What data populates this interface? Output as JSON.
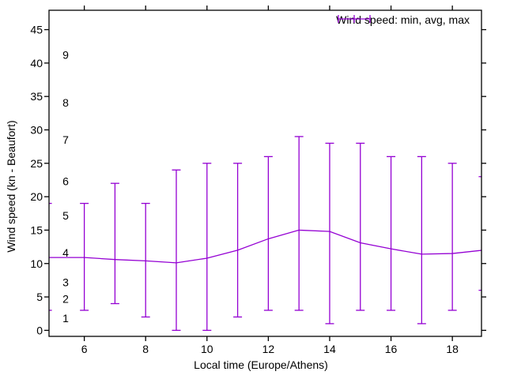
{
  "chart_data": {
    "type": "line",
    "subtype": "errorbars",
    "title": "",
    "xlabel": "Local time (Europe/Athens)",
    "ylabel": "Wind speed (kn - Beaufort)",
    "legend": {
      "label": "Wind speed: min, avg, max",
      "position": "top-right-inside"
    },
    "grid": false,
    "xlim": [
      4.85,
      18.95
    ],
    "ylim": [
      -0.9,
      47.9
    ],
    "x_ticks": [
      6,
      8,
      10,
      12,
      14,
      16,
      18
    ],
    "y_ticks": [
      0,
      5,
      10,
      15,
      20,
      25,
      30,
      35,
      40,
      45
    ],
    "beaufort_scale": {
      "values": [
        1,
        2,
        3,
        4,
        5,
        6,
        7,
        8,
        9
      ],
      "kn_positions": [
        1.8,
        4.7,
        7.2,
        11.6,
        17.2,
        22.3,
        28.5,
        34.1,
        41.2
      ]
    },
    "x": [
      4.8,
      6,
      7,
      8,
      9,
      10,
      11,
      12,
      13,
      14,
      15,
      16,
      17,
      18,
      19
    ],
    "series": [
      {
        "name": "min",
        "values": [
          3,
          3,
          4,
          2,
          0,
          0,
          2,
          3,
          3,
          1,
          3,
          3,
          1,
          3,
          6
        ]
      },
      {
        "name": "avg",
        "values": [
          10.9,
          10.9,
          10.6,
          10.4,
          10.1,
          10.8,
          12.0,
          13.7,
          15.0,
          14.8,
          13.1,
          12.2,
          11.4,
          11.5,
          12.0
        ]
      },
      {
        "name": "max",
        "values": [
          19,
          19,
          22,
          19,
          24,
          25,
          25,
          26,
          29,
          28,
          28,
          26,
          26,
          25,
          23
        ]
      }
    ],
    "series_color": "#9400d3",
    "axis_color": "#000000",
    "background": "#ffffff"
  }
}
